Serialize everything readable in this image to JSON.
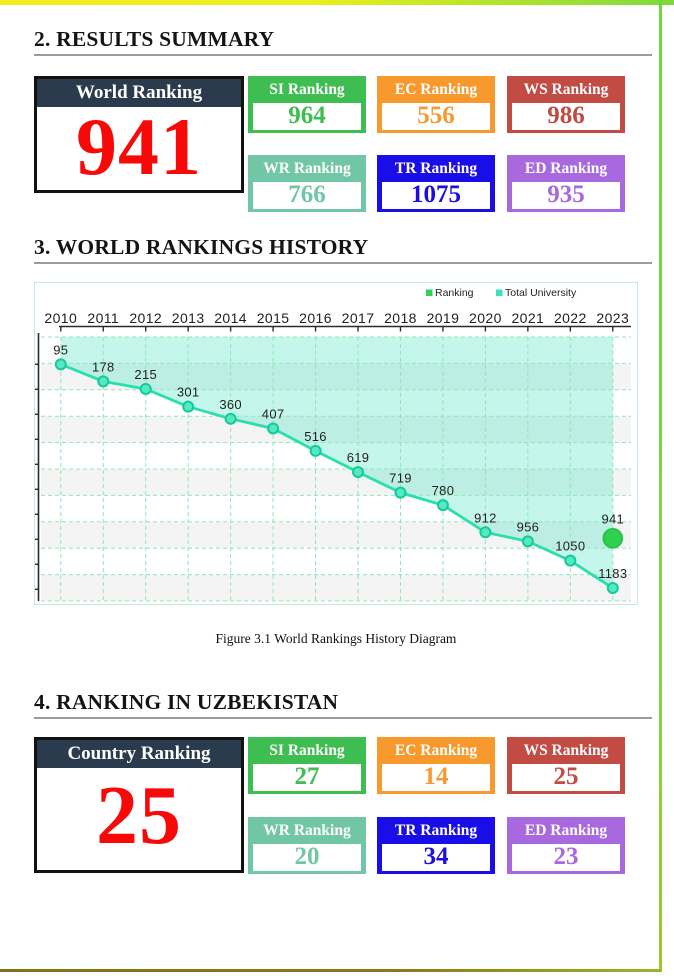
{
  "summary": {
    "title": "2. RESULTS SUMMARY",
    "main_card": {
      "label": "World Ranking",
      "value": "941",
      "header_bg": "#2B3B4E",
      "value_color": "#F90808",
      "border_color": "#111111"
    },
    "cards": [
      {
        "label": "SI Ranking",
        "value": "964",
        "color": "#3EBD50"
      },
      {
        "label": "EC Ranking",
        "value": "556",
        "color": "#F8992E"
      },
      {
        "label": "WS Ranking",
        "value": "986",
        "color": "#C24B43"
      },
      {
        "label": "WR Ranking",
        "value": "766",
        "color": "#71C7A5"
      },
      {
        "label": "TR Ranking",
        "value": "1075",
        "color": "#1A0EE8"
      },
      {
        "label": "ED Ranking",
        "value": "935",
        "color": "#A869DE"
      }
    ]
  },
  "history": {
    "title": "3. WORLD RANKINGS HISTORY",
    "caption": "Figure 3.1 World Rankings History Diagram"
  },
  "chart_data": {
    "type": "line",
    "x": [
      2010,
      2011,
      2012,
      2013,
      2014,
      2015,
      2016,
      2017,
      2018,
      2019,
      2020,
      2021,
      2022,
      2023
    ],
    "series": [
      {
        "name": "Total University",
        "values": [
          95,
          178,
          215,
          301,
          360,
          407,
          516,
          619,
          719,
          780,
          912,
          956,
          1050,
          1183
        ],
        "color": "#29DFAD",
        "area_color": "rgba(62,224,189,0.30)",
        "marker_fill": "#55E9C1",
        "marker_stroke": "#14C99B"
      }
    ],
    "highlight_point": {
      "name": "Ranking",
      "x": 2023,
      "value": 941,
      "color": "#2FD04E",
      "stroke": "#1FBF45"
    },
    "legend": [
      {
        "label": "Ranking",
        "color": "#2DD455"
      },
      {
        "label": "Total University",
        "color": "#3BE0C2"
      }
    ],
    "x_axis_position": "top",
    "y_axis_labels": false,
    "grid": "dashed",
    "grid_color": "#8FE7B4",
    "stripe_color": "#F4F4F4",
    "label_color": "#1F1F1F"
  },
  "uzbekistan": {
    "title": "4. RANKING IN UZBEKISTAN",
    "main_card": {
      "label": "Country Ranking",
      "value": "25",
      "header_bg": "#2B3B4E",
      "value_color": "#F90808",
      "border_color": "#111111"
    },
    "cards": [
      {
        "label": "SI Ranking",
        "value": "27",
        "color": "#3EBD50"
      },
      {
        "label": "EC Ranking",
        "value": "14",
        "color": "#F8992E"
      },
      {
        "label": "WS Ranking",
        "value": "25",
        "color": "#C24B43"
      },
      {
        "label": "WR Ranking",
        "value": "20",
        "color": "#71C7A5"
      },
      {
        "label": "TR Ranking",
        "value": "34",
        "color": "#1A0EE8"
      },
      {
        "label": "ED Ranking",
        "value": "23",
        "color": "#A869DE"
      }
    ]
  }
}
